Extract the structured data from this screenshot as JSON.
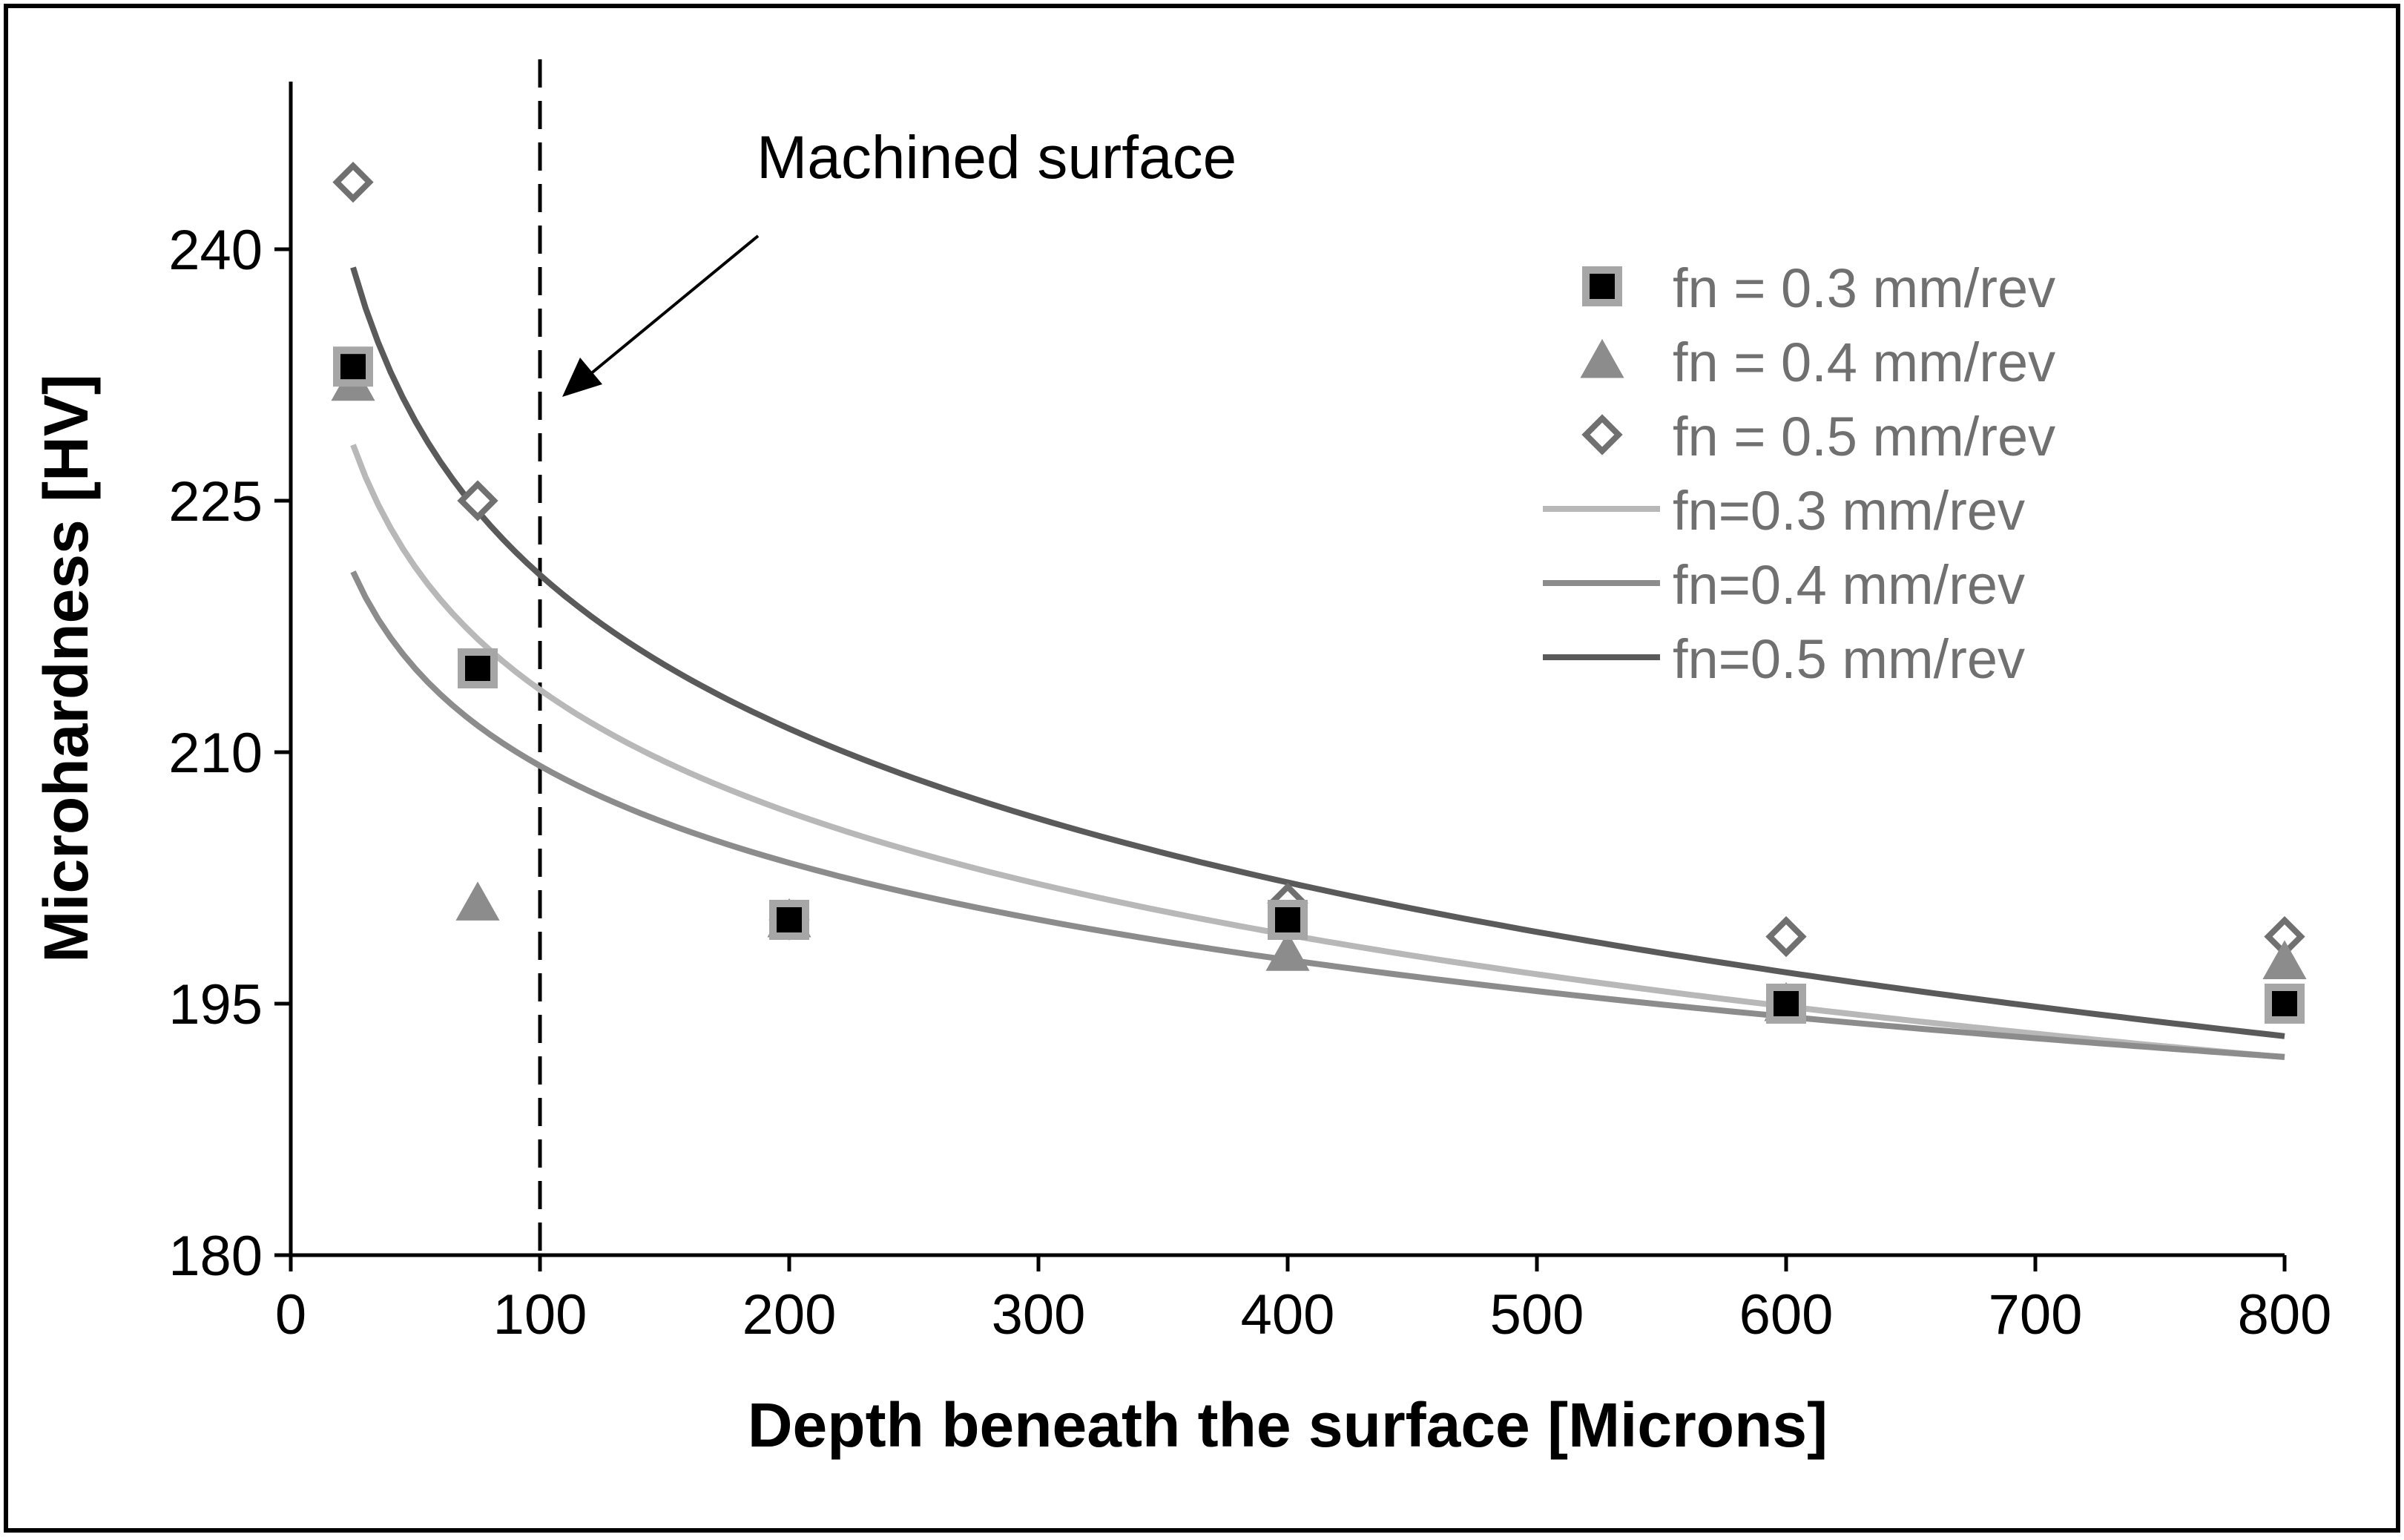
{
  "chart_data": {
    "type": "scatter",
    "title": "",
    "xlabel": "Depth beneath the surface [Microns]",
    "ylabel": "Microhardness [HV]",
    "xlim": [
      0,
      800
    ],
    "ylim": [
      180,
      250
    ],
    "xticks": [
      0,
      100,
      200,
      300,
      400,
      500,
      600,
      700,
      800
    ],
    "yticks": [
      180,
      195,
      210,
      225,
      240
    ],
    "grid": false,
    "legend_position": "top-right",
    "series": [
      {
        "name": "fn = 0.3 mm/rev",
        "kind": "points",
        "marker": "square",
        "fill": "#000000",
        "stroke": "#a6a6a6",
        "x": [
          25,
          75,
          200,
          400,
          600,
          800
        ],
        "y": [
          233,
          215,
          200,
          200,
          195,
          195
        ]
      },
      {
        "name": "fn = 0.4 mm/rev",
        "kind": "points",
        "marker": "triangle",
        "fill": "#8c8c8c",
        "stroke": "#8c8c8c",
        "x": [
          25,
          75,
          200,
          400,
          600,
          800
        ],
        "y": [
          232,
          201,
          200,
          198,
          195,
          197.5
        ]
      },
      {
        "name": "fn = 0.5 mm/rev",
        "kind": "points",
        "marker": "diamond",
        "fill": "#ffffff",
        "stroke": "#707070",
        "x": [
          25,
          75,
          200,
          400,
          600,
          800
        ],
        "y": [
          244,
          225,
          200,
          201,
          199,
          199
        ]
      },
      {
        "name": "fn=0.3 mm/rev",
        "kind": "trend",
        "model": "log",
        "a": 262.26,
        "b": -10.54,
        "color": "#b8b8b8",
        "x": [
          25,
          800
        ]
      },
      {
        "name": "fn=0.4 mm/rev",
        "kind": "trend",
        "model": "log",
        "a": 247.64,
        "b": -8.35,
        "color": "#8c8c8c",
        "x": [
          25,
          800
        ]
      },
      {
        "name": "fn=0.5 mm/rev",
        "kind": "trend",
        "model": "log",
        "a": 281.5,
        "b": -13.23,
        "color": "#5a5a5a",
        "x": [
          25,
          800
        ]
      }
    ],
    "annotations": [
      {
        "text": "Machined surface",
        "vline_x": 100
      }
    ]
  }
}
